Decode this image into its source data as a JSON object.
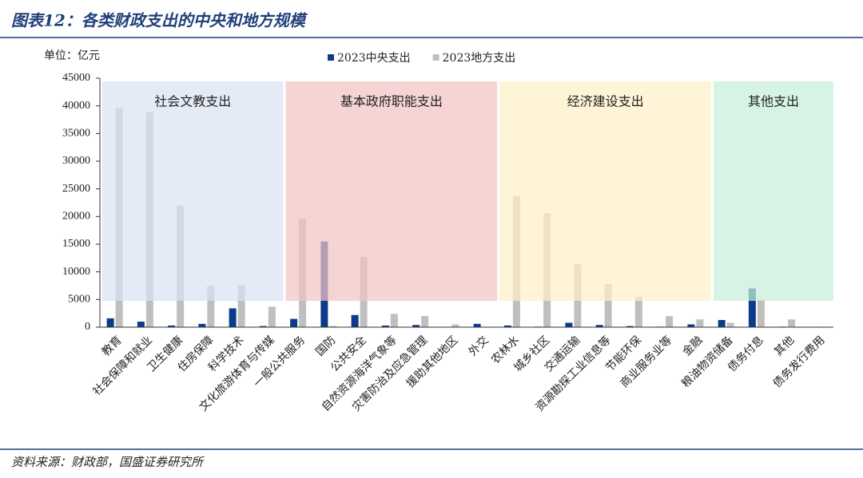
{
  "title": "图表12：各类财政支出的中央和地方规模",
  "source": "资料来源：财政部，国盛证券研究所",
  "chart_data": {
    "type": "bar",
    "unit_label": "单位：亿元",
    "categories": [
      "教育",
      "社会保障和就业",
      "卫生健康",
      "住房保障",
      "科学技术",
      "文化旅游体育与传媒",
      "一般公共服务",
      "国防",
      "公共安全",
      "自然资源海洋气象等",
      "灾害防治及应急管理",
      "援助其他地区",
      "外交",
      "农林水",
      "城乡社区",
      "交通运输",
      "资源勘探工业信息等",
      "节能环保",
      "商业服务业等",
      "金融",
      "粮油物资储备",
      "债务付息",
      "其他",
      "债务发行费用"
    ],
    "series": [
      {
        "name": "2023中央支出",
        "color": "#0d3b8c",
        "values": [
          1600,
          1000,
          300,
          600,
          3400,
          200,
          1500,
          15500,
          2200,
          300,
          400,
          50,
          600,
          300,
          100,
          800,
          400,
          200,
          100,
          500,
          1300,
          7000,
          100,
          50
        ]
      },
      {
        "name": "2023地方支出",
        "color": "#bfbfbf",
        "values": [
          39600,
          38900,
          22000,
          7500,
          7600,
          3700,
          19600,
          200,
          12700,
          2400,
          2000,
          500,
          50,
          23700,
          20600,
          11400,
          7800,
          5500,
          2000,
          1400,
          800,
          4900,
          1400,
          100
        ]
      }
    ],
    "regions": [
      {
        "label": "社会文教支出",
        "span": 6,
        "color": "#dae3f3"
      },
      {
        "label": "基本政府职能支出",
        "span": 7,
        "color": "#f2c4c4"
      },
      {
        "label": "经济建设支出",
        "span": 7,
        "color": "#fff0c8"
      },
      {
        "label": "其他支出",
        "span": 4,
        "color": "#c8eed8"
      }
    ],
    "ylim": [
      0,
      45000
    ],
    "yticks": [
      0,
      5000,
      10000,
      15000,
      20000,
      25000,
      30000,
      35000,
      40000,
      45000
    ],
    "legend": "top"
  }
}
